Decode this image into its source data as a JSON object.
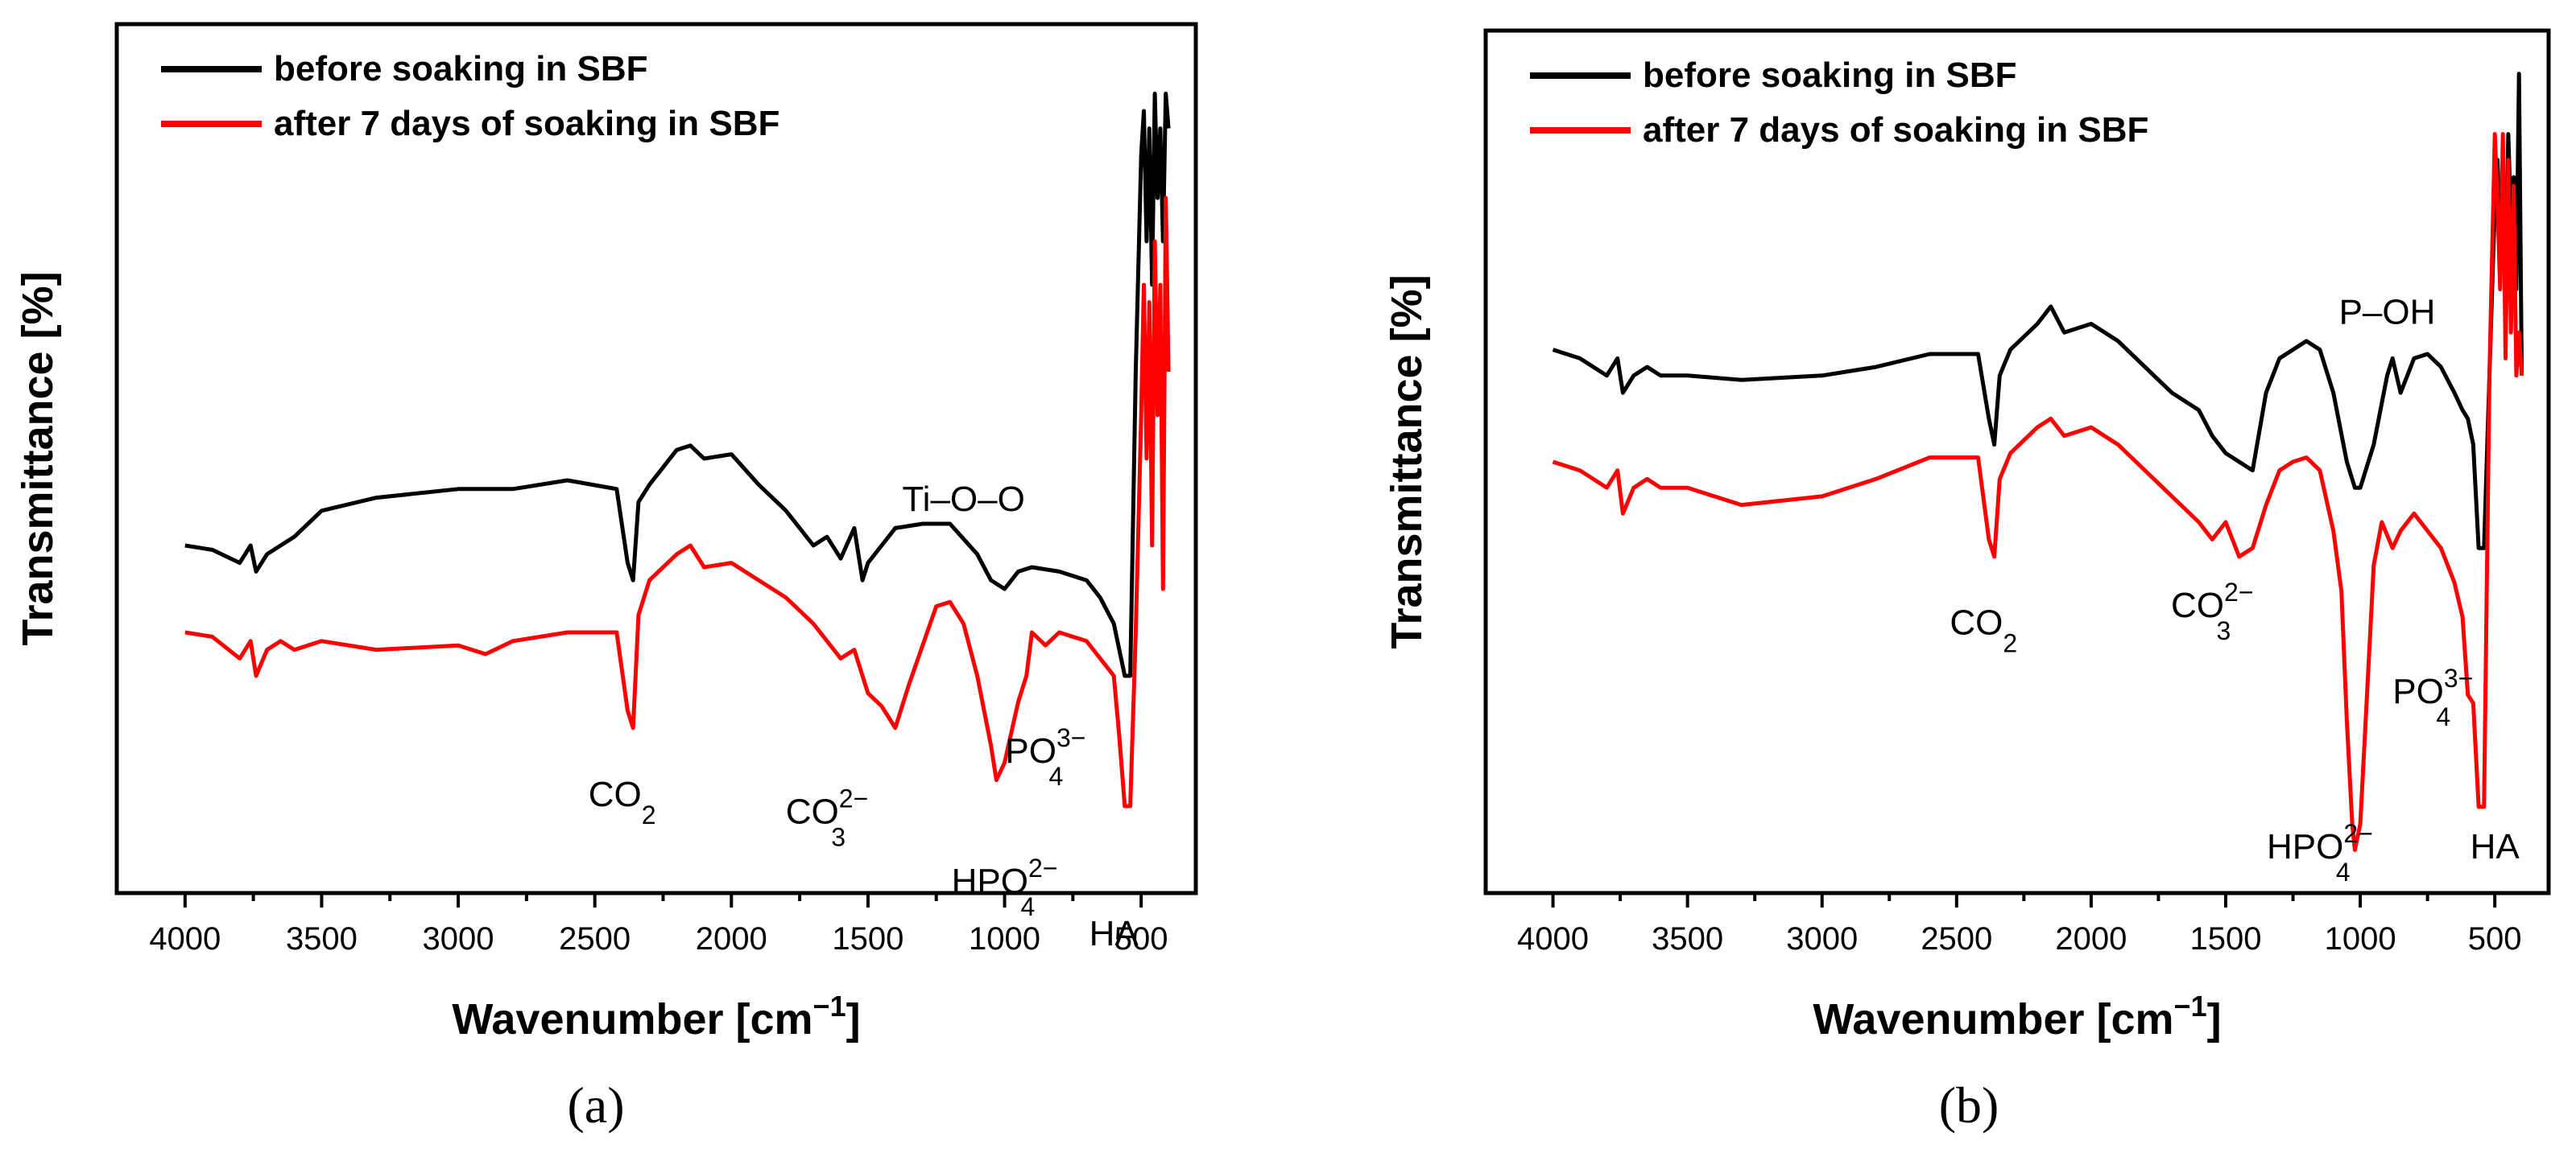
{
  "colors": {
    "before": "#000000",
    "after": "#ff0000"
  },
  "chart_data": [
    {
      "type": "line",
      "panel": "(a)",
      "xlabel_main": "Wavenumber [cm",
      "xlabel_sup": "−1",
      "xlabel_end": "]",
      "ylabel": "Transmittance [%]",
      "xlim": [
        4250,
        300
      ],
      "x_reversed": true,
      "ylim": [
        0,
        100
      ],
      "x_ticks": [
        4000,
        3500,
        3000,
        2500,
        2000,
        1500,
        1000,
        500
      ],
      "x_tick_labels": [
        "4000",
        "3500",
        "3000",
        "2500",
        "2000",
        "1500",
        "1000",
        "500"
      ],
      "legend": {
        "position": "top-left",
        "entries": [
          "before soaking in SBF",
          "after 7 days of soaking in SBF"
        ]
      },
      "series": [
        {
          "name": "before soaking in SBF",
          "x": [
            4000,
            3900,
            3800,
            3760,
            3740,
            3700,
            3650,
            3600,
            3500,
            3300,
            3000,
            2800,
            2600,
            2420,
            2380,
            2360,
            2340,
            2300,
            2200,
            2150,
            2100,
            2000,
            1900,
            1800,
            1700,
            1650,
            1600,
            1550,
            1520,
            1500,
            1450,
            1400,
            1300,
            1200,
            1100,
            1050,
            1000,
            950,
            900,
            800,
            700,
            650,
            600,
            580,
            560,
            540,
            520,
            500,
            490,
            480,
            470,
            460,
            450,
            440,
            430,
            420,
            410,
            400
          ],
          "y": [
            40,
            39.5,
            38,
            40,
            37,
            39,
            40,
            41,
            44,
            45.5,
            46.5,
            46.5,
            47.5,
            46.5,
            38,
            36,
            45,
            47,
            51,
            51.5,
            50,
            50.5,
            47,
            44,
            40,
            41,
            38.5,
            42,
            36,
            38,
            40,
            42,
            42.5,
            42.5,
            39,
            36,
            35,
            37,
            37.5,
            37,
            36,
            34,
            31,
            28,
            25,
            25,
            60,
            85,
            90,
            75,
            88,
            70,
            92,
            80,
            88,
            75,
            92,
            88
          ]
        },
        {
          "name": "after 7 days of soaking in SBF",
          "x": [
            4000,
            3900,
            3800,
            3760,
            3740,
            3700,
            3650,
            3600,
            3500,
            3300,
            3000,
            2900,
            2800,
            2600,
            2420,
            2380,
            2360,
            2340,
            2300,
            2200,
            2150,
            2100,
            2000,
            1900,
            1800,
            1700,
            1600,
            1550,
            1500,
            1450,
            1420,
            1400,
            1350,
            1250,
            1200,
            1150,
            1100,
            1050,
            1030,
            1000,
            950,
            920,
            900,
            850,
            800,
            700,
            650,
            600,
            580,
            560,
            540,
            520,
            500,
            490,
            480,
            470,
            460,
            450,
            440,
            430,
            420,
            410,
            400
          ],
          "y": [
            30,
            29.5,
            27,
            29,
            25,
            28,
            29,
            28,
            29,
            28,
            28.5,
            27.5,
            29,
            30,
            30,
            21,
            19,
            32,
            36,
            39,
            40,
            37.5,
            38,
            36,
            34,
            31,
            27,
            28,
            23,
            21.5,
            20,
            19,
            24,
            33,
            33.5,
            31,
            25,
            17,
            13,
            15,
            22,
            25,
            30,
            28.5,
            30,
            29,
            27,
            25,
            18,
            10,
            10,
            30,
            55,
            70,
            50,
            68,
            40,
            75,
            55,
            70,
            35,
            80,
            60
          ]
        }
      ],
      "annotations": [
        {
          "main": "Ti–O–O",
          "sup": "",
          "sub": "",
          "x": 1150,
          "y": 44
        },
        {
          "main": "CO",
          "sup": "",
          "sub": "2",
          "x": 2400,
          "y": 10
        },
        {
          "main": "CO",
          "sup": "2−",
          "sub": "3",
          "x": 1650,
          "y": 8
        },
        {
          "main": "HPO",
          "sup": "2−",
          "sub": "4",
          "x": 1000,
          "y": 0
        },
        {
          "main": "PO",
          "sup": "3−",
          "sub": "4",
          "x": 850,
          "y": 15
        },
        {
          "main": "HA",
          "sup": "",
          "sub": "",
          "x": 600,
          "y": -6
        }
      ]
    },
    {
      "type": "line",
      "panel": "(b)",
      "xlabel_main": "Wavenumber [cm",
      "xlabel_sup": "−1",
      "xlabel_end": "]",
      "ylabel": "Transmittance [%]",
      "xlim": [
        4250,
        300
      ],
      "x_reversed": true,
      "ylim": [
        0,
        100
      ],
      "x_ticks": [
        4000,
        3500,
        3000,
        2500,
        2000,
        1500,
        1000,
        500
      ],
      "x_tick_labels": [
        "4000",
        "3500",
        "3000",
        "2500",
        "2000",
        "1500",
        "1000",
        "500"
      ],
      "legend": {
        "position": "top-left",
        "entries": [
          "before soaking in SBF",
          "after 7 days of soaking in SBF"
        ]
      },
      "series": [
        {
          "name": "before soaking in SBF",
          "x": [
            4000,
            3900,
            3800,
            3760,
            3740,
            3700,
            3650,
            3600,
            3500,
            3300,
            3000,
            2800,
            2600,
            2420,
            2380,
            2360,
            2340,
            2300,
            2200,
            2150,
            2100,
            2000,
            1900,
            1800,
            1700,
            1600,
            1550,
            1500,
            1450,
            1400,
            1350,
            1300,
            1250,
            1200,
            1150,
            1100,
            1050,
            1020,
            1000,
            950,
            900,
            880,
            850,
            800,
            750,
            700,
            650,
            620,
            600,
            580,
            560,
            540,
            520,
            500,
            490,
            480,
            470,
            460,
            450,
            440,
            430,
            420,
            410,
            400
          ],
          "y": [
            63,
            62,
            60,
            62,
            58,
            60,
            61,
            60,
            60,
            59.5,
            60,
            61,
            62.5,
            62.5,
            55,
            52,
            60,
            63,
            66,
            68,
            65,
            66,
            64,
            61,
            58,
            56,
            53,
            51,
            50,
            49,
            58,
            62,
            63,
            64,
            63,
            58,
            50,
            47,
            47,
            52,
            60,
            62,
            58,
            62,
            62.5,
            61,
            58,
            56,
            55,
            52,
            40,
            40,
            60,
            80,
            85,
            76,
            84,
            70,
            88,
            78,
            83,
            70,
            95,
            60
          ]
        },
        {
          "name": "after 7 days of soaking in SBF",
          "x": [
            4000,
            3900,
            3800,
            3760,
            3740,
            3700,
            3650,
            3600,
            3500,
            3300,
            3000,
            2800,
            2600,
            2420,
            2380,
            2360,
            2340,
            2300,
            2200,
            2150,
            2100,
            2000,
            1900,
            1800,
            1700,
            1600,
            1550,
            1500,
            1450,
            1400,
            1350,
            1300,
            1250,
            1200,
            1150,
            1100,
            1070,
            1050,
            1030,
            1020,
            1000,
            980,
            950,
            920,
            900,
            880,
            850,
            800,
            750,
            700,
            650,
            620,
            600,
            580,
            560,
            540,
            520,
            500,
            490,
            480,
            470,
            460,
            450,
            440,
            430,
            420,
            410,
            400
          ],
          "y": [
            50,
            49,
            47,
            49,
            44,
            47,
            48,
            47,
            47,
            45,
            46,
            48,
            50.5,
            50.5,
            41,
            39,
            48,
            51,
            54,
            55,
            53,
            54,
            52,
            49,
            46,
            43,
            41,
            43,
            39,
            40,
            45,
            49,
            50,
            50.5,
            49,
            42,
            35,
            20,
            8,
            5,
            8,
            20,
            38,
            43,
            41.5,
            40,
            42,
            44,
            42,
            40,
            36,
            32,
            23,
            22,
            10,
            10,
            60,
            88,
            80,
            70,
            88,
            62,
            85,
            65,
            82,
            60,
            65,
            60
          ]
        }
      ],
      "annotations": [
        {
          "main": "P–OH",
          "sup": "",
          "sub": "",
          "x": 900,
          "y": 66
        },
        {
          "main": "CO",
          "sup": "",
          "sub": "2",
          "x": 2400,
          "y": 30
        },
        {
          "main": "CO",
          "sup": "2−",
          "sub": "3",
          "x": 1550,
          "y": 32
        },
        {
          "main": "PO",
          "sup": "3−",
          "sub": "4",
          "x": 730,
          "y": 22
        },
        {
          "main": "HPO",
          "sup": "2−",
          "sub": "4",
          "x": 1150,
          "y": 4
        },
        {
          "main": "HA",
          "sup": "",
          "sub": "",
          "x": 500,
          "y": 4
        }
      ]
    }
  ]
}
